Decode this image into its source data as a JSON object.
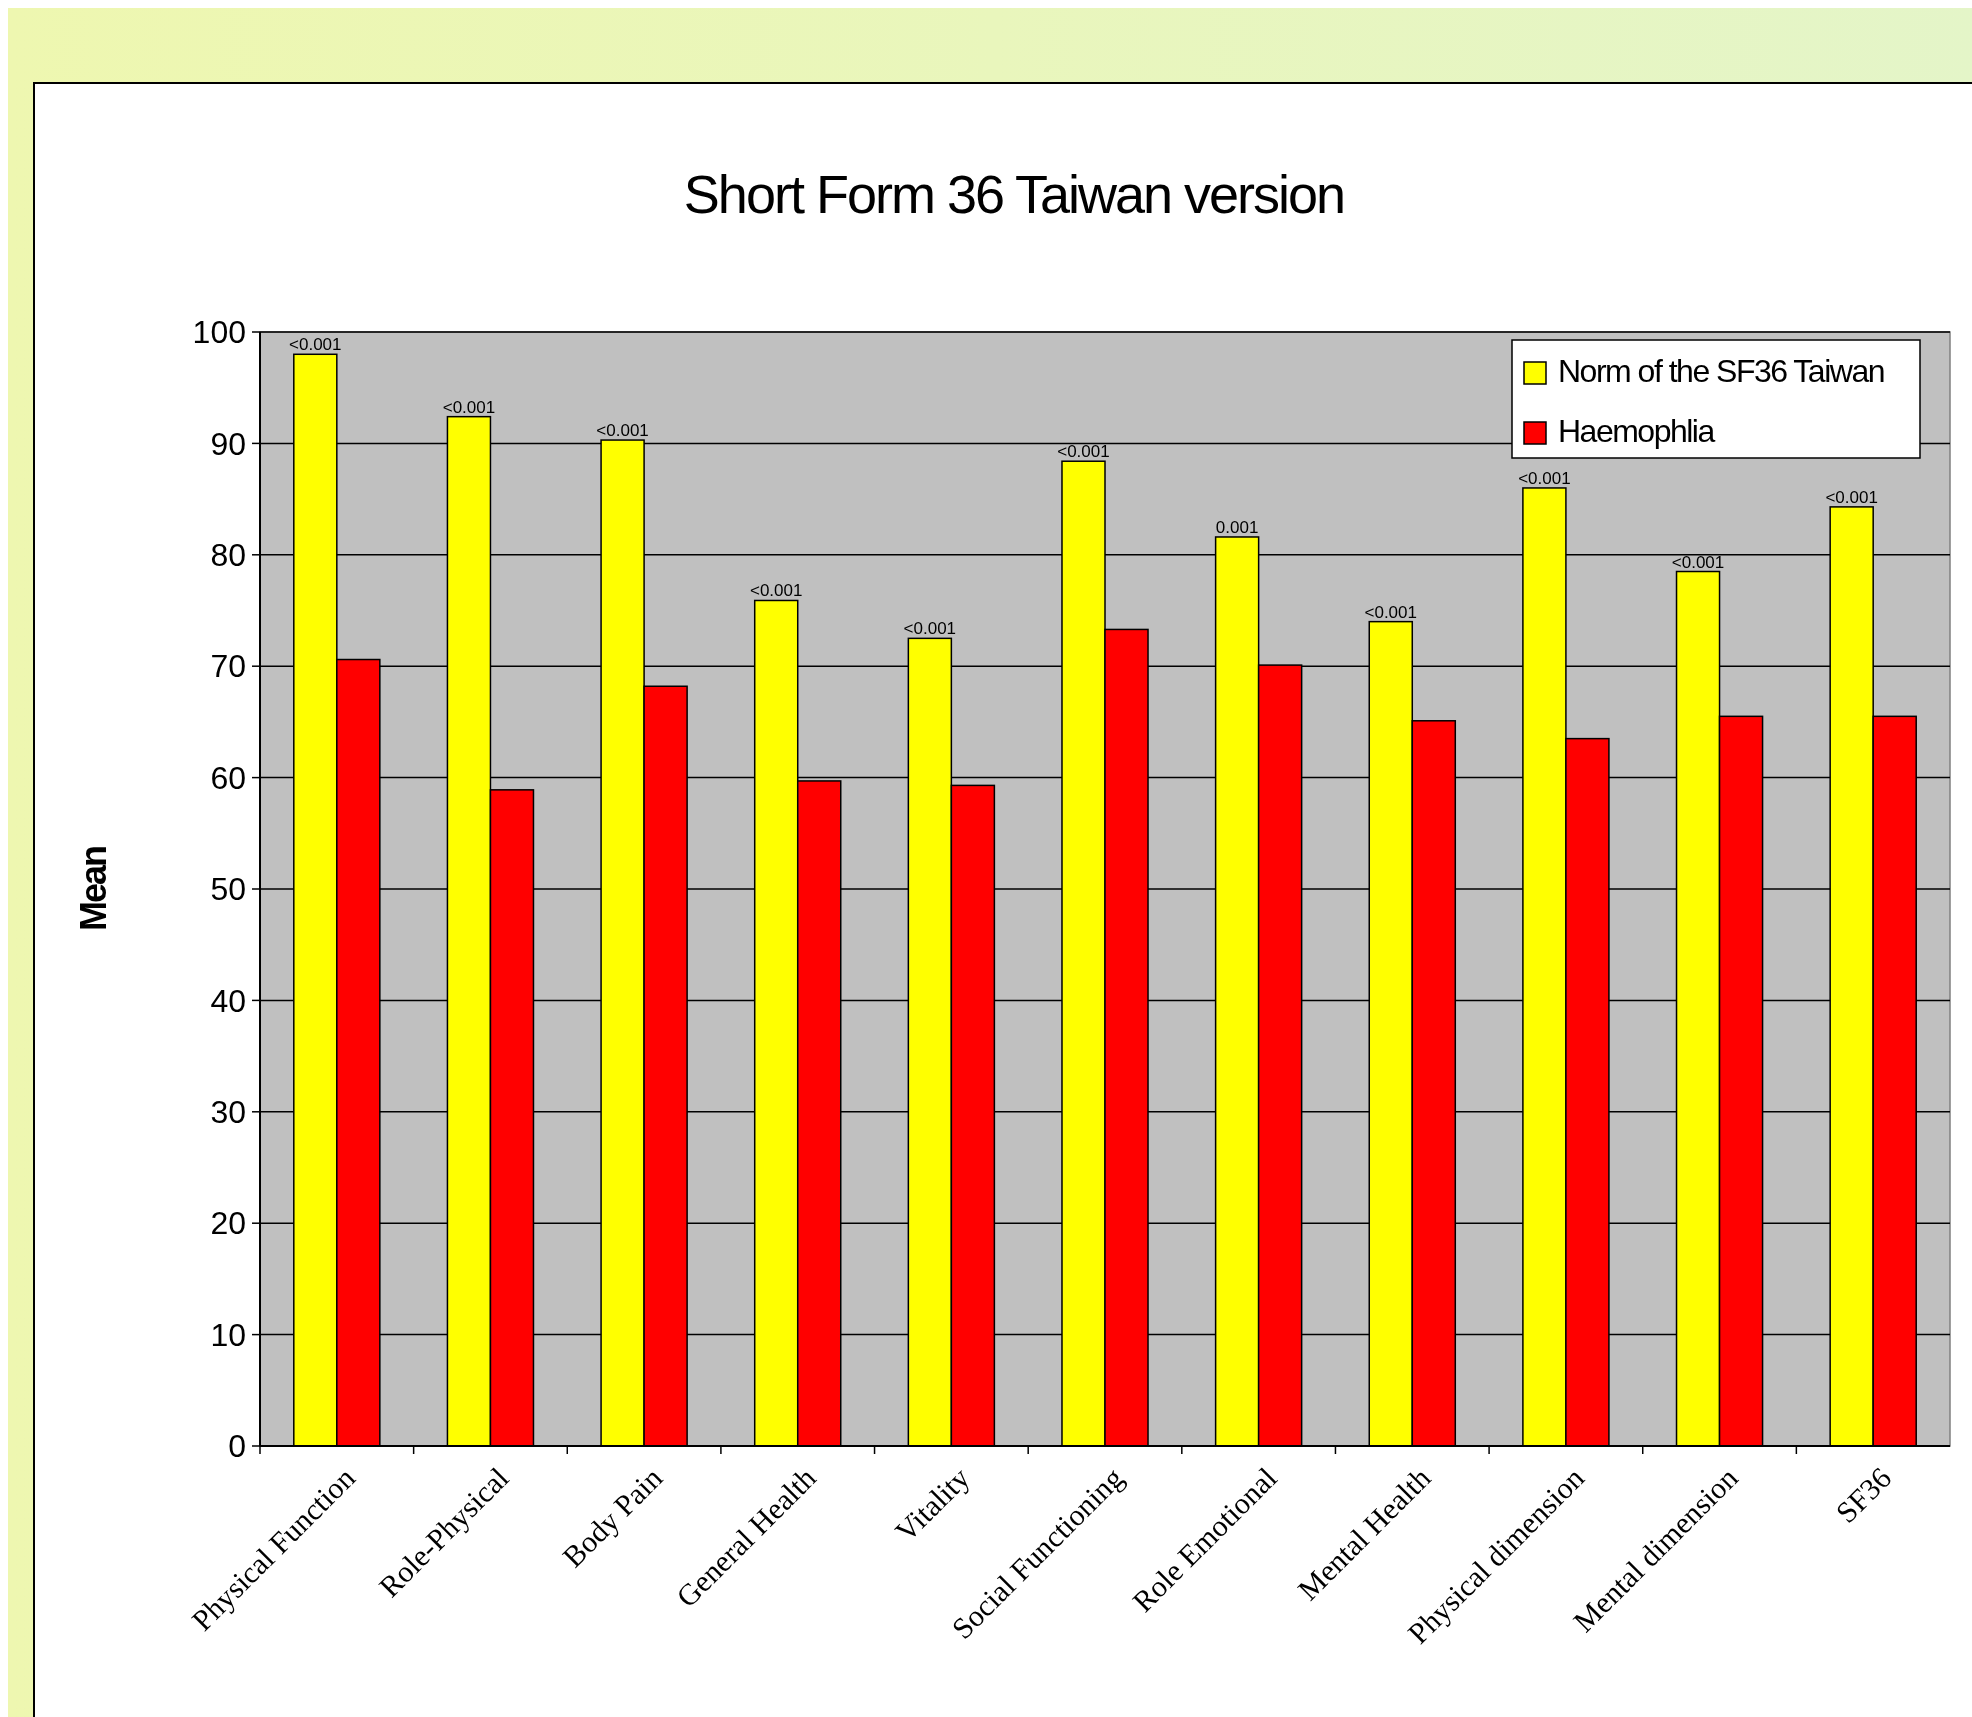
{
  "chart_data": {
    "type": "bar",
    "title": "Short Form 36 Taiwan version",
    "ylabel": "Mean",
    "categories": [
      "Physical Function",
      "Role-Physical",
      "Body Pain",
      "General Health",
      "Vitality",
      "Social Functioning",
      "Role Emotional",
      "Mental Health",
      "Physical dimension",
      "Mental dimension",
      "SF36"
    ],
    "series": [
      {
        "name": "Norm of the SF36 Taiwan",
        "color": "#ffff00",
        "values": [
          98.0,
          92.4,
          90.3,
          75.9,
          72.5,
          88.4,
          81.6,
          74.0,
          86.0,
          78.5,
          84.3
        ]
      },
      {
        "name": "Haemophlia",
        "color": "#ff0000",
        "values": [
          70.6,
          58.9,
          68.2,
          59.7,
          59.3,
          73.3,
          70.1,
          65.1,
          63.5,
          65.5,
          65.5
        ]
      }
    ],
    "ylim": [
      0,
      100
    ],
    "yticks": [
      0,
      10,
      20,
      30,
      40,
      50,
      60,
      70,
      80,
      90,
      100
    ],
    "grid": "y",
    "legend": "top right",
    "annotations": [
      "<0.001",
      "<0.001",
      "<0.001",
      "<0.001",
      "<0.001",
      "<0.001",
      "0.001",
      "<0.001",
      "<0.001",
      "<0.001",
      "<0.001"
    ]
  }
}
